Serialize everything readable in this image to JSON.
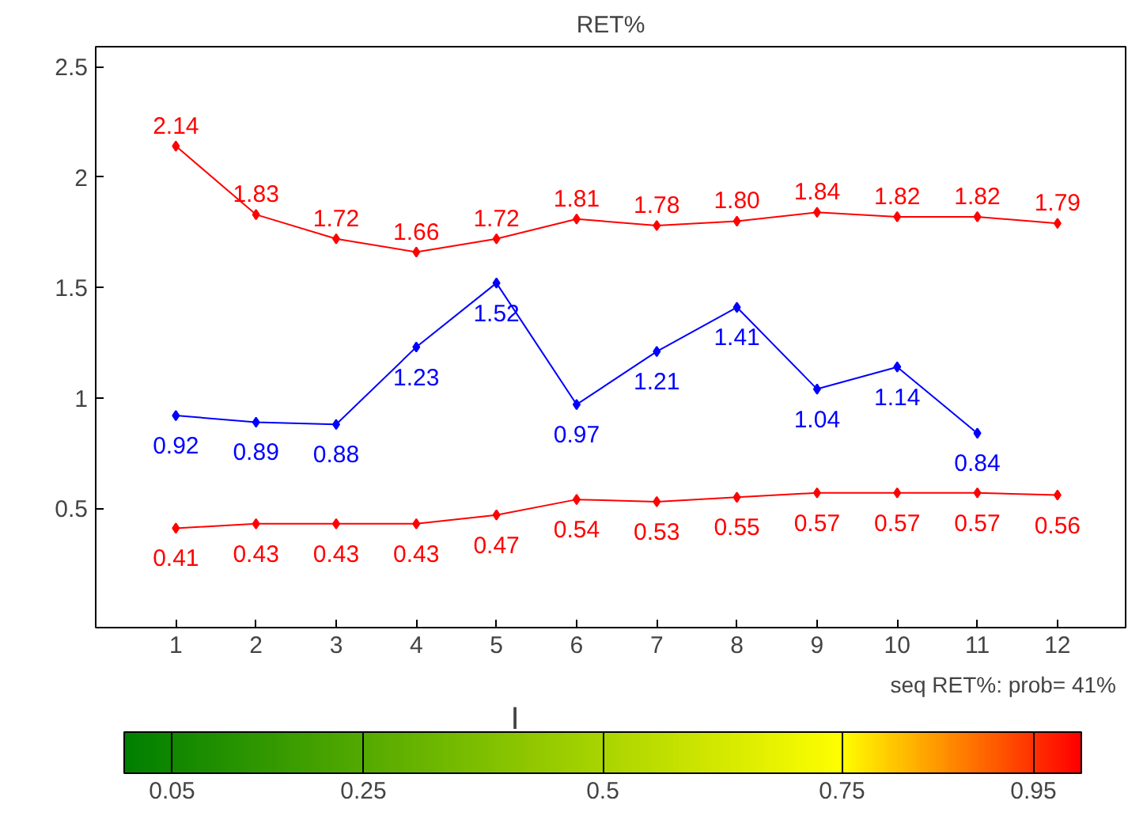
{
  "chart_data": {
    "type": "line",
    "title": "RET%",
    "x": [
      1,
      2,
      3,
      4,
      5,
      6,
      7,
      8,
      9,
      10,
      11,
      12
    ],
    "xlim": [
      0,
      12.85
    ],
    "xticks": [
      1,
      2,
      3,
      4,
      5,
      6,
      7,
      8,
      9,
      10,
      11,
      12
    ],
    "ylim": [
      -0.04,
      2.59
    ],
    "yticks": [
      0.5,
      1,
      1.5,
      2,
      2.5
    ],
    "series": [
      {
        "color": "#ff0000",
        "values": [
          2.14,
          1.83,
          1.72,
          1.66,
          1.72,
          1.81,
          1.78,
          1.8,
          1.84,
          1.82,
          1.82,
          1.79
        ],
        "value_labels": [
          "2.14",
          "1.83",
          "1.72",
          "1.66",
          "1.72",
          "1.81",
          "1.78",
          "1.80",
          "1.84",
          "1.82",
          "1.82",
          "1.79"
        ]
      },
      {
        "color": "#0000ff",
        "values": [
          0.92,
          0.89,
          0.88,
          1.23,
          1.52,
          0.97,
          1.21,
          1.41,
          1.04,
          1.14,
          0.84,
          null
        ],
        "value_labels": [
          "0.92",
          "0.89",
          "0.88",
          "1.23",
          "1.52",
          "0.97",
          "1.21",
          "1.41",
          "1.04",
          "1.14",
          "0.84",
          null
        ]
      },
      {
        "color": "#ff0000",
        "values": [
          0.41,
          0.43,
          0.43,
          0.43,
          0.47,
          0.54,
          0.53,
          0.55,
          0.57,
          0.57,
          0.57,
          0.56
        ],
        "value_labels": [
          "0.41",
          "0.43",
          "0.43",
          "0.43",
          "0.47",
          "0.54",
          "0.53",
          "0.55",
          "0.57",
          "0.57",
          "0.57",
          "0.56"
        ]
      }
    ],
    "marker": "diamond",
    "line_style": "solid",
    "grid": false,
    "clim": [
      0,
      1
    ],
    "cticks": [
      0.05,
      0.25,
      0.5,
      0.75,
      0.95
    ],
    "annotations": [
      "I",
      "seq RET%: prob= 41%"
    ]
  }
}
